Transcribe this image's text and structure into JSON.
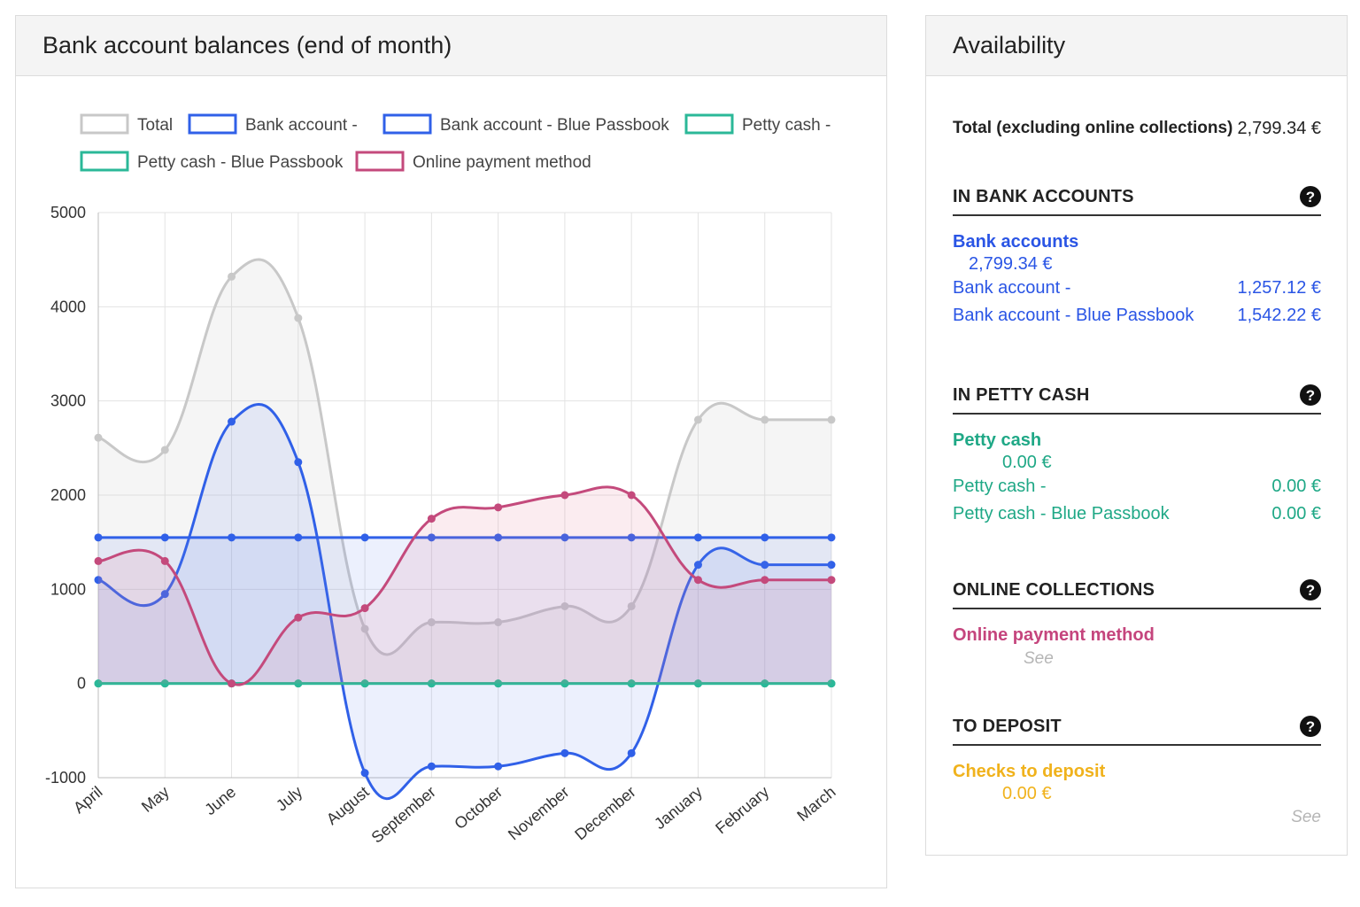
{
  "chart_panel": {
    "title": "Bank account balances (end of month)"
  },
  "chart_data": {
    "type": "line",
    "title": "Bank account balances (end of month)",
    "categories": [
      "April",
      "May",
      "June",
      "July",
      "August",
      "September",
      "October",
      "November",
      "December",
      "January",
      "February",
      "March"
    ],
    "ylim": [
      -1000,
      5000
    ],
    "yticks": [
      5000,
      4000,
      3000,
      2000,
      1000,
      0,
      -1000
    ],
    "grid": true,
    "legend_position": "top",
    "series": [
      {
        "name": "Total",
        "color": "#c8c8c8",
        "fill": "rgba(200,200,200,0.18)",
        "values": [
          2610,
          2480,
          4320,
          3880,
          580,
          650,
          650,
          820,
          820,
          2800,
          2800,
          2800
        ]
      },
      {
        "name": "Bank account -",
        "color": "#3060e8",
        "fill": "rgba(100,130,235,0.12)",
        "values": [
          1100,
          950,
          2780,
          2350,
          -950,
          -880,
          -880,
          -740,
          -740,
          1260,
          1260,
          1260
        ]
      },
      {
        "name": "Bank account - Blue Passbook",
        "color": "#3060e8",
        "fill": "rgba(100,130,235,0.12)",
        "values": [
          1550,
          1550,
          1550,
          1550,
          1550,
          1550,
          1550,
          1550,
          1550,
          1550,
          1550,
          1550
        ]
      },
      {
        "name": "Petty cash -",
        "color": "#2bb898",
        "fill": "rgba(43,184,152,0.10)",
        "values": [
          0,
          0,
          0,
          0,
          0,
          0,
          0,
          0,
          0,
          0,
          0,
          0
        ]
      },
      {
        "name": "Petty cash - Blue Passbook",
        "color": "#2bb898",
        "fill": "rgba(43,184,152,0.10)",
        "values": [
          0,
          0,
          0,
          0,
          0,
          0,
          0,
          0,
          0,
          0,
          0,
          0
        ]
      },
      {
        "name": "Online payment method",
        "color": "#c44a7c",
        "fill": "rgba(230,120,150,0.14)",
        "values": [
          1300,
          1300,
          0,
          700,
          800,
          1750,
          1870,
          2000,
          2000,
          1100,
          1100,
          1100
        ]
      }
    ]
  },
  "availability": {
    "title": "Availability",
    "total_label": "Total (excluding online collections)",
    "total_value": "2,799.34 €",
    "bank": {
      "section_title": "IN BANK ACCOUNTS",
      "group_title": "Bank accounts",
      "group_total": "2,799.34 €",
      "rows": [
        {
          "label": "Bank account -",
          "value": "1,257.12 €"
        },
        {
          "label": "Bank account - Blue Passbook",
          "value": "1,542.22 €"
        }
      ]
    },
    "petty": {
      "section_title": "IN PETTY CASH",
      "group_title": "Petty cash",
      "group_total": "0.00 €",
      "rows": [
        {
          "label": "Petty cash -",
          "value": "0.00 €"
        },
        {
          "label": "Petty cash - Blue Passbook",
          "value": "0.00 €"
        }
      ]
    },
    "online": {
      "section_title": "ONLINE COLLECTIONS",
      "group_title": "Online payment method",
      "see": "See"
    },
    "deposit": {
      "section_title": "TO DEPOSIT",
      "group_title": "Checks to deposit",
      "group_total": "0.00 €",
      "see": "See"
    },
    "help_glyph": "?",
    "icons": {
      "help": "help-circle-icon"
    }
  }
}
